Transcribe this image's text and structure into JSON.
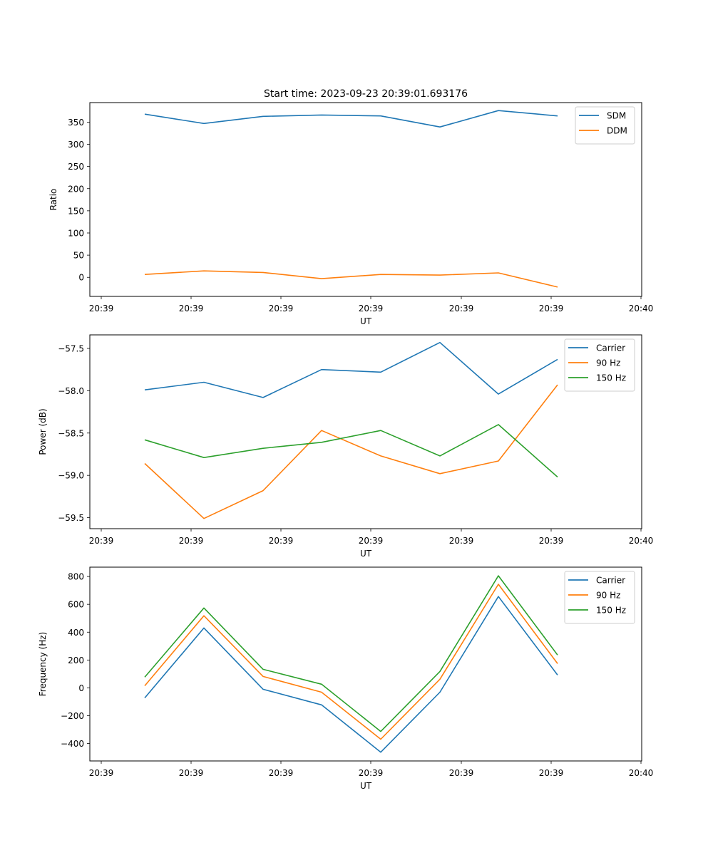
{
  "chart_data": [
    {
      "type": "line",
      "title": "Start time: 2023-09-23 20:39:01.693176",
      "xlabel": "UT",
      "ylabel": "Ratio",
      "x_ticks": [
        "20:39",
        "20:39",
        "20:39",
        "20:39",
        "20:39",
        "20:39",
        "20:40"
      ],
      "y_ticks": [
        0,
        50,
        100,
        150,
        200,
        250,
        300,
        350
      ],
      "ylim": [
        -43,
        394
      ],
      "legend": "top-right",
      "grid": false,
      "series": [
        {
          "name": "SDM",
          "color": "#1f77b4",
          "values": [
            368,
            347,
            363,
            366,
            364,
            339,
            376,
            364
          ]
        },
        {
          "name": "DDM",
          "color": "#ff7f0e",
          "values": [
            6.5,
            14.5,
            11,
            -3,
            6.5,
            5,
            10,
            -22
          ]
        }
      ]
    },
    {
      "type": "line",
      "title": "",
      "xlabel": "UT",
      "ylabel": "Power (dB)",
      "x_ticks": [
        "20:39",
        "20:39",
        "20:39",
        "20:39",
        "20:39",
        "20:39",
        "20:40"
      ],
      "y_ticks": [
        -59.5,
        -59.0,
        -58.5,
        -58.0,
        -57.5
      ],
      "y_tick_labels": [
        "−59.5",
        "−59.0",
        "−58.5",
        "−58.0",
        "−57.5"
      ],
      "ylim": [
        -59.63,
        -57.34
      ],
      "legend": "top-right",
      "grid": false,
      "series": [
        {
          "name": "Carrier",
          "color": "#1f77b4",
          "values": [
            -57.99,
            -57.9,
            -58.08,
            -57.75,
            -57.78,
            -57.43,
            -58.04,
            -57.63
          ]
        },
        {
          "name": "90 Hz",
          "color": "#ff7f0e",
          "values": [
            -58.86,
            -59.51,
            -59.18,
            -58.47,
            -58.77,
            -58.98,
            -58.83,
            -57.93
          ]
        },
        {
          "name": "150 Hz",
          "color": "#2ca02c",
          "values": [
            -58.58,
            -58.79,
            -58.68,
            -58.61,
            -58.47,
            -58.77,
            -58.4,
            -59.02
          ]
        }
      ]
    },
    {
      "type": "line",
      "title": "",
      "xlabel": "UT",
      "ylabel": "Frequency (Hz)",
      "x_ticks": [
        "20:39",
        "20:39",
        "20:39",
        "20:39",
        "20:39",
        "20:39",
        "20:40"
      ],
      "y_ticks": [
        -400,
        -200,
        0,
        200,
        400,
        600,
        800
      ],
      "y_tick_labels": [
        "−400",
        "−200",
        "0",
        "200",
        "400",
        "600",
        "800"
      ],
      "ylim": [
        -525,
        867
      ],
      "legend": "top-right",
      "grid": false,
      "series": [
        {
          "name": "Carrier",
          "color": "#1f77b4",
          "values": [
            -72,
            430,
            -10,
            -122,
            -462,
            -31,
            656,
            92
          ]
        },
        {
          "name": "90 Hz",
          "color": "#ff7f0e",
          "values": [
            15,
            518,
            82,
            -31,
            -369,
            62,
            744,
            174
          ]
        },
        {
          "name": "150 Hz",
          "color": "#2ca02c",
          "values": [
            77,
            574,
            133,
            26,
            -313,
            118,
            805,
            236
          ]
        }
      ]
    }
  ]
}
